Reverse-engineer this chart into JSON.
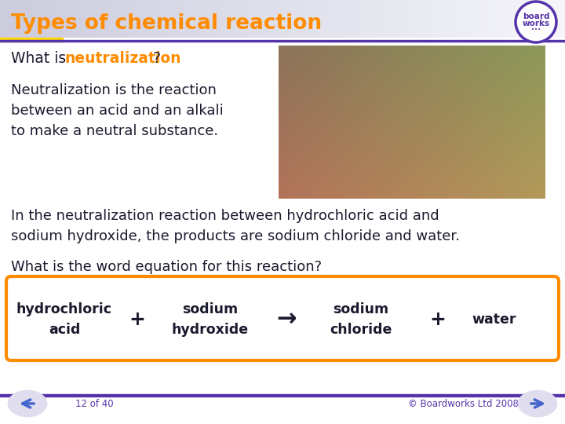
{
  "title": "Types of chemical reaction",
  "title_color": "#FF8C00",
  "title_bg_start": "#C8C8D8",
  "title_bg_end": "#F0F0F5",
  "accent_bar_color": "#FFD700",
  "bg_color": "#FFFFFF",
  "highlight_color": "#FF8C00",
  "body_text_color": "#1a1a2e",
  "para1_lines": [
    "Neutralization is the reaction",
    "between an acid and an alkali",
    "to make a neutral substance."
  ],
  "para2_lines": [
    "In the neutralization reaction between hydrochloric acid and",
    "sodium hydroxide, the products are sodium chloride and water."
  ],
  "para3": "What is the word equation for this reaction?",
  "equation_box_border": "#FF8C00",
  "equation_box_fill": "#FFFFFF",
  "eq_term1_line1": "hydrochloric",
  "eq_term1_line2": "acid",
  "eq_plus1": "+",
  "eq_term2_line1": "sodium",
  "eq_term2_line2": "hydroxide",
  "eq_arrow": "→",
  "eq_term3_line1": "sodium",
  "eq_term3_line2": "chloride",
  "eq_plus2": "+",
  "eq_term4": "water",
  "equation_text_color": "#1a1a2e",
  "footer_text": "12 of 40",
  "copyright_text": "© Boardworks Ltd 2008",
  "nav_color": "#5533AA",
  "footer_line_color": "#5533AA",
  "logo_text_color": "#5533AA"
}
